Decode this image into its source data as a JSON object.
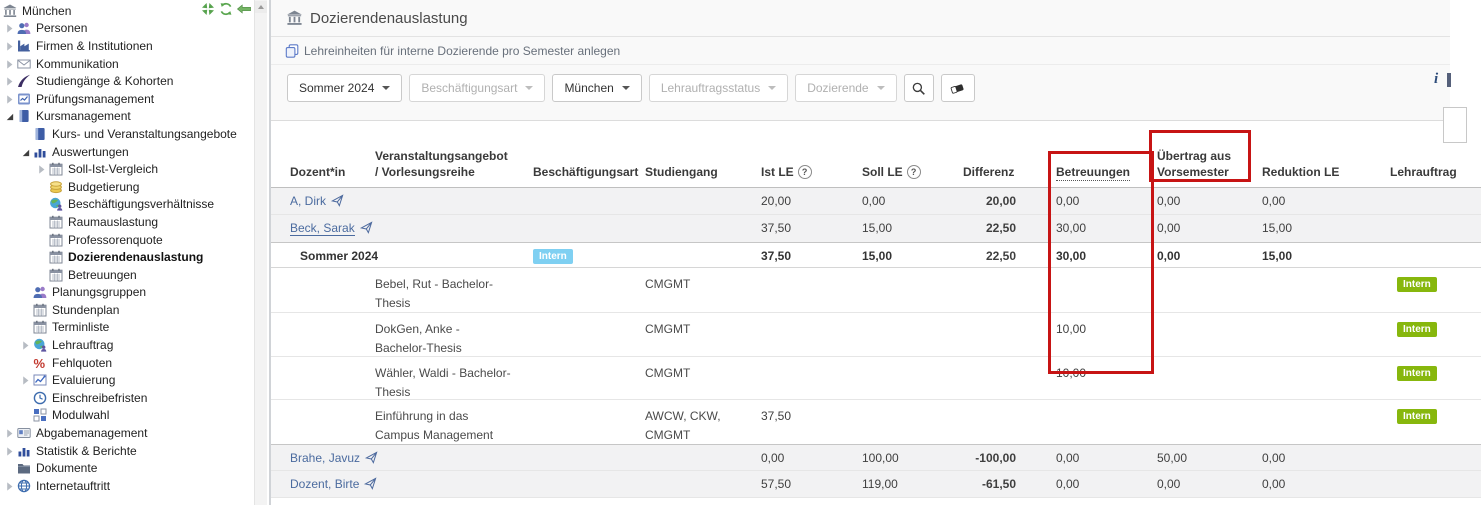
{
  "colors": {
    "link": "#4b6b9f",
    "positive": "#3b7a00",
    "negative": "#d03722",
    "badge_blue": "#7fd0f2",
    "badge_green": "#87b70d",
    "annotation_red": "#c71414"
  },
  "sidebar": {
    "items": [
      {
        "label": "München",
        "level": 0,
        "icon": "bank"
      },
      {
        "label": "Personen",
        "level": 1,
        "arrow": "collapsed",
        "icon": "people"
      },
      {
        "label": "Firmen & Institutionen",
        "level": 1,
        "arrow": "collapsed",
        "icon": "factory"
      },
      {
        "label": "Kommunikation",
        "level": 1,
        "arrow": "collapsed",
        "icon": "envelope"
      },
      {
        "label": "Studiengänge & Kohorten",
        "level": 1,
        "arrow": "collapsed",
        "icon": "swoosh"
      },
      {
        "label": "Prüfungsmanagement",
        "level": 1,
        "arrow": "collapsed",
        "icon": "exam"
      },
      {
        "label": "Kursmanagement",
        "level": 1,
        "arrow": "expanded",
        "icon": "book"
      },
      {
        "label": "Kurs- und Veranstaltungsangebote",
        "level": 2,
        "icon": "book"
      },
      {
        "label": "Auswertungen",
        "level": 2,
        "arrow": "expanded",
        "icon": "barchart"
      },
      {
        "label": "Soll-Ist-Vergleich",
        "level": 3,
        "arrow": "collapsed",
        "icon": "calendar"
      },
      {
        "label": "Budgetierung",
        "level": 3,
        "icon": "coins"
      },
      {
        "label": "Beschäftigungsverhältnisse",
        "level": 3,
        "icon": "globe-people"
      },
      {
        "label": "Raumauslastung",
        "level": 3,
        "icon": "calendar"
      },
      {
        "label": "Professorenquote",
        "level": 3,
        "icon": "calendar"
      },
      {
        "label": "Dozierendenauslastung",
        "level": 3,
        "icon": "calendar",
        "bold": true
      },
      {
        "label": "Betreuungen",
        "level": 3,
        "icon": "calendar"
      },
      {
        "label": "Planungsgruppen",
        "level": 2,
        "icon": "people"
      },
      {
        "label": "Stundenplan",
        "level": 2,
        "icon": "calendar"
      },
      {
        "label": "Terminliste",
        "level": 2,
        "icon": "calendar"
      },
      {
        "label": "Lehrauftrag",
        "level": 2,
        "arrow": "collapsed",
        "icon": "globe-people"
      },
      {
        "label": "Fehlquoten",
        "level": 2,
        "icon": "percent"
      },
      {
        "label": "Evaluierung",
        "level": 2,
        "arrow": "collapsed",
        "icon": "linechart"
      },
      {
        "label": "Einschreibefristen",
        "level": 2,
        "icon": "clock"
      },
      {
        "label": "Modulwahl",
        "level": 2,
        "icon": "grid"
      },
      {
        "label": "Abgabemanagement",
        "level": 1,
        "arrow": "collapsed",
        "icon": "idcard"
      },
      {
        "label": "Statistik & Berichte",
        "level": 1,
        "arrow": "collapsed",
        "icon": "barchart"
      },
      {
        "label": "Dokumente",
        "level": 1,
        "icon": "folder"
      },
      {
        "label": "Internetauftritt",
        "level": 1,
        "arrow": "collapsed",
        "icon": "globe"
      }
    ]
  },
  "header": {
    "title": "Dozierendenauslastung",
    "action_link": "Lehreinheiten für interne Dozierende pro Semester anlegen",
    "info_glyph": "i"
  },
  "filters": {
    "buttons": [
      {
        "label": "Sommer 2024",
        "enabled": true
      },
      {
        "label": "Beschäftigungsart",
        "enabled": false
      },
      {
        "label": "München",
        "enabled": true
      },
      {
        "label": "Lehrauftragsstatus",
        "enabled": false
      },
      {
        "label": "Dozierende",
        "enabled": false
      }
    ]
  },
  "table": {
    "columns": [
      {
        "key": "dozent",
        "label": "Dozent*in",
        "w": 85
      },
      {
        "key": "veranstaltung",
        "label_lines": [
          "Veranstaltungsangebot",
          "/ Vorlesungsreihe"
        ],
        "w": 158
      },
      {
        "key": "beschaeftigungsart",
        "label": "Beschäftigungsart",
        "w": 112
      },
      {
        "key": "studiengang",
        "label": "Studiengang",
        "w": 116
      },
      {
        "key": "ist",
        "label": "Ist LE",
        "help": true,
        "w": 101
      },
      {
        "key": "soll",
        "label": "Soll LE",
        "help": true,
        "w": 101
      },
      {
        "key": "differenz",
        "label": "Differenz",
        "w": 93
      },
      {
        "key": "betreuungen",
        "label": "Betreuungen",
        "underline": true,
        "w": 101
      },
      {
        "key": "uebertrag",
        "label_lines": [
          "Übertrag aus",
          "Vorsemester"
        ],
        "w": 105
      },
      {
        "key": "reduktion",
        "label": "Reduktion LE",
        "w": 128
      },
      {
        "key": "lehrauftrag",
        "label": "Lehrauftrag",
        "w": 90
      }
    ],
    "rows": [
      {
        "kind": "person",
        "h": 27,
        "shade": true,
        "cells": {
          "dozent": {
            "link": "A, Dirk"
          },
          "ist": {
            "text": "20,00"
          },
          "soll": {
            "text": "0,00"
          },
          "differenz": {
            "text": "20,00",
            "tone": "pos"
          },
          "betreuungen": {
            "text": "0,00"
          },
          "uebertrag": {
            "text": "0,00"
          },
          "reduktion": {
            "text": "0,00"
          }
        }
      },
      {
        "kind": "person",
        "h": 27,
        "shade": true,
        "no_bb": true,
        "cells": {
          "dozent": {
            "link": "Beck, Sarak",
            "underline": true
          },
          "ist": {
            "text": "37,50"
          },
          "soll": {
            "text": "15,00"
          },
          "differenz": {
            "text": "22,50",
            "tone": "pos"
          },
          "betreuungen": {
            "text": "30,00"
          },
          "uebertrag": {
            "text": "0,00"
          },
          "reduktion": {
            "text": "15,00"
          }
        }
      },
      {
        "kind": "semester",
        "h": 26,
        "border_top": true,
        "cells": {
          "dozent": {
            "text": "Sommer 2024",
            "bold": true,
            "indent": 10
          },
          "beschaeftigungsart": {
            "badge": "blue",
            "text": "Intern"
          },
          "ist": {
            "text": "37,50",
            "bold": true
          },
          "soll": {
            "text": "15,00",
            "bold": true
          },
          "differenz": {
            "text": "22,50",
            "tone": "pos"
          },
          "betreuungen": {
            "text": "30,00",
            "bold": true
          },
          "uebertrag": {
            "text": "0,00",
            "bold": true
          },
          "reduktion": {
            "text": "15,00",
            "bold": true
          }
        }
      },
      {
        "kind": "course",
        "h": 45,
        "cells": {
          "veranstaltung": {
            "lines": [
              "Bebel, Rut - Bachelor-",
              "Thesis"
            ]
          },
          "studiengang": {
            "lines": [
              "CMGMT"
            ]
          },
          "lehrauftrag": {
            "badge": "green",
            "text": "Intern"
          }
        }
      },
      {
        "kind": "course",
        "h": 44,
        "cells": {
          "veranstaltung": {
            "lines": [
              "DokGen, Anke -",
              "Bachelor-Thesis"
            ]
          },
          "studiengang": {
            "lines": [
              "CMGMT"
            ]
          },
          "betreuungen": {
            "text": "10,00"
          },
          "lehrauftrag": {
            "badge": "green",
            "text": "Intern"
          }
        }
      },
      {
        "kind": "course",
        "h": 43,
        "cells": {
          "veranstaltung": {
            "lines": [
              "Wähler, Waldi - Bachelor-",
              "Thesis"
            ]
          },
          "studiengang": {
            "lines": [
              "CMGMT"
            ]
          },
          "betreuungen": {
            "text": "10,00"
          },
          "lehrauftrag": {
            "badge": "green",
            "text": "Intern"
          }
        }
      },
      {
        "kind": "course",
        "h": 44,
        "no_bb": true,
        "cells": {
          "veranstaltung": {
            "lines": [
              "Einführung in das",
              "Campus Management"
            ]
          },
          "studiengang": {
            "lines": [
              "AWCW, CKW,",
              "CMGMT"
            ]
          },
          "ist": {
            "text": "37,50"
          },
          "lehrauftrag": {
            "badge": "green",
            "text": "Intern"
          }
        }
      },
      {
        "kind": "person",
        "h": 27,
        "shade": true,
        "border_top": true,
        "cells": {
          "dozent": {
            "link": "Brahe, Javuz"
          },
          "ist": {
            "text": "0,00"
          },
          "soll": {
            "text": "100,00"
          },
          "differenz": {
            "text": "-100,00",
            "tone": "neg"
          },
          "betreuungen": {
            "text": "0,00"
          },
          "uebertrag": {
            "text": "50,00"
          },
          "reduktion": {
            "text": "0,00"
          }
        }
      },
      {
        "kind": "person",
        "h": 27,
        "shade": true,
        "cells": {
          "dozent": {
            "link": "Dozent, Birte"
          },
          "ist": {
            "text": "57,50"
          },
          "soll": {
            "text": "119,00"
          },
          "differenz": {
            "text": "-61,50",
            "tone": "neg"
          },
          "betreuungen": {
            "text": "0,00"
          },
          "uebertrag": {
            "text": "0,00"
          },
          "reduktion": {
            "text": "0,00"
          }
        }
      }
    ]
  },
  "annotations": [
    {
      "target": "betreuungen-column"
    },
    {
      "target": "uebertrag-aus-vorsemester-header"
    }
  ]
}
